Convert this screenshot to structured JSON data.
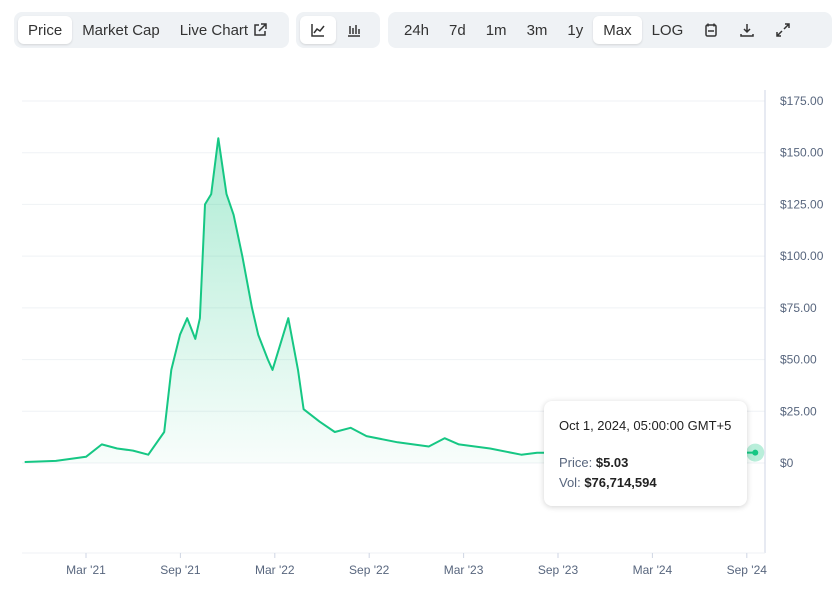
{
  "toolbar": {
    "views": [
      {
        "label": "Price",
        "active": true
      },
      {
        "label": "Market Cap",
        "active": false
      },
      {
        "label": "Live Chart",
        "active": false,
        "icon": "external-link-icon"
      }
    ],
    "chart_types": [
      {
        "icon": "line-chart-icon",
        "active": true
      },
      {
        "icon": "candlestick-icon",
        "active": false
      }
    ],
    "ranges": [
      {
        "label": "24h"
      },
      {
        "label": "7d"
      },
      {
        "label": "1m"
      },
      {
        "label": "3m"
      },
      {
        "label": "1y"
      },
      {
        "label": "Max",
        "active": true
      },
      {
        "label": "LOG"
      }
    ],
    "tools": [
      "calendar-icon",
      "download-icon",
      "fullscreen-icon"
    ]
  },
  "tooltip": {
    "date": "Oct 1, 2024, 05:00:00 GMT+5",
    "price_label": "Price:",
    "price": "$5.03",
    "vol_label": "Vol:",
    "vol": "$76,714,594"
  },
  "chart_data": {
    "type": "area",
    "line_color": "#16c784",
    "y_ticks": [
      "$0",
      "$25.00",
      "$50.00",
      "$75.00",
      "$100.00",
      "$125.00",
      "$150.00",
      "$175.00"
    ],
    "ylim": [
      0,
      175
    ],
    "x_ticks": [
      "Mar '21",
      "Sep '21",
      "Mar '22",
      "Sep '22",
      "Mar '23",
      "Sep '23",
      "Mar '24",
      "Sep '24"
    ],
    "grid": true,
    "series": [
      {
        "values": [
          [
            "2020-11",
            0.5
          ],
          [
            "2021-01",
            1
          ],
          [
            "2021-03",
            3
          ],
          [
            "2021-04",
            9
          ],
          [
            "2021-05",
            7
          ],
          [
            "2021-06",
            6
          ],
          [
            "2021-07",
            4
          ],
          [
            "2021-08",
            15
          ],
          [
            "2021-08-15",
            45
          ],
          [
            "2021-09",
            62
          ],
          [
            "2021-09-15",
            70
          ],
          [
            "2021-10",
            60
          ],
          [
            "2021-10-10",
            70
          ],
          [
            "2021-10-20",
            125
          ],
          [
            "2021-11",
            130
          ],
          [
            "2021-11-15",
            157
          ],
          [
            "2021-12",
            130
          ],
          [
            "2021-12-15",
            120
          ],
          [
            "2022-01",
            100
          ],
          [
            "2022-01-20",
            75
          ],
          [
            "2022-02",
            62
          ],
          [
            "2022-02-20",
            50
          ],
          [
            "2022-03",
            45
          ],
          [
            "2022-04",
            70
          ],
          [
            "2022-04-20",
            45
          ],
          [
            "2022-05",
            26
          ],
          [
            "2022-06",
            20
          ],
          [
            "2022-07",
            15
          ],
          [
            "2022-08",
            17
          ],
          [
            "2022-09",
            13
          ],
          [
            "2022-11",
            10
          ],
          [
            "2023-01",
            8
          ],
          [
            "2023-02",
            12
          ],
          [
            "2023-03",
            9
          ],
          [
            "2023-05",
            7
          ],
          [
            "2023-07",
            4
          ],
          [
            "2023-08",
            5
          ],
          [
            "2024-01",
            5
          ],
          [
            "2024-06",
            5
          ],
          [
            "2024-10",
            5.03
          ]
        ]
      }
    ]
  }
}
